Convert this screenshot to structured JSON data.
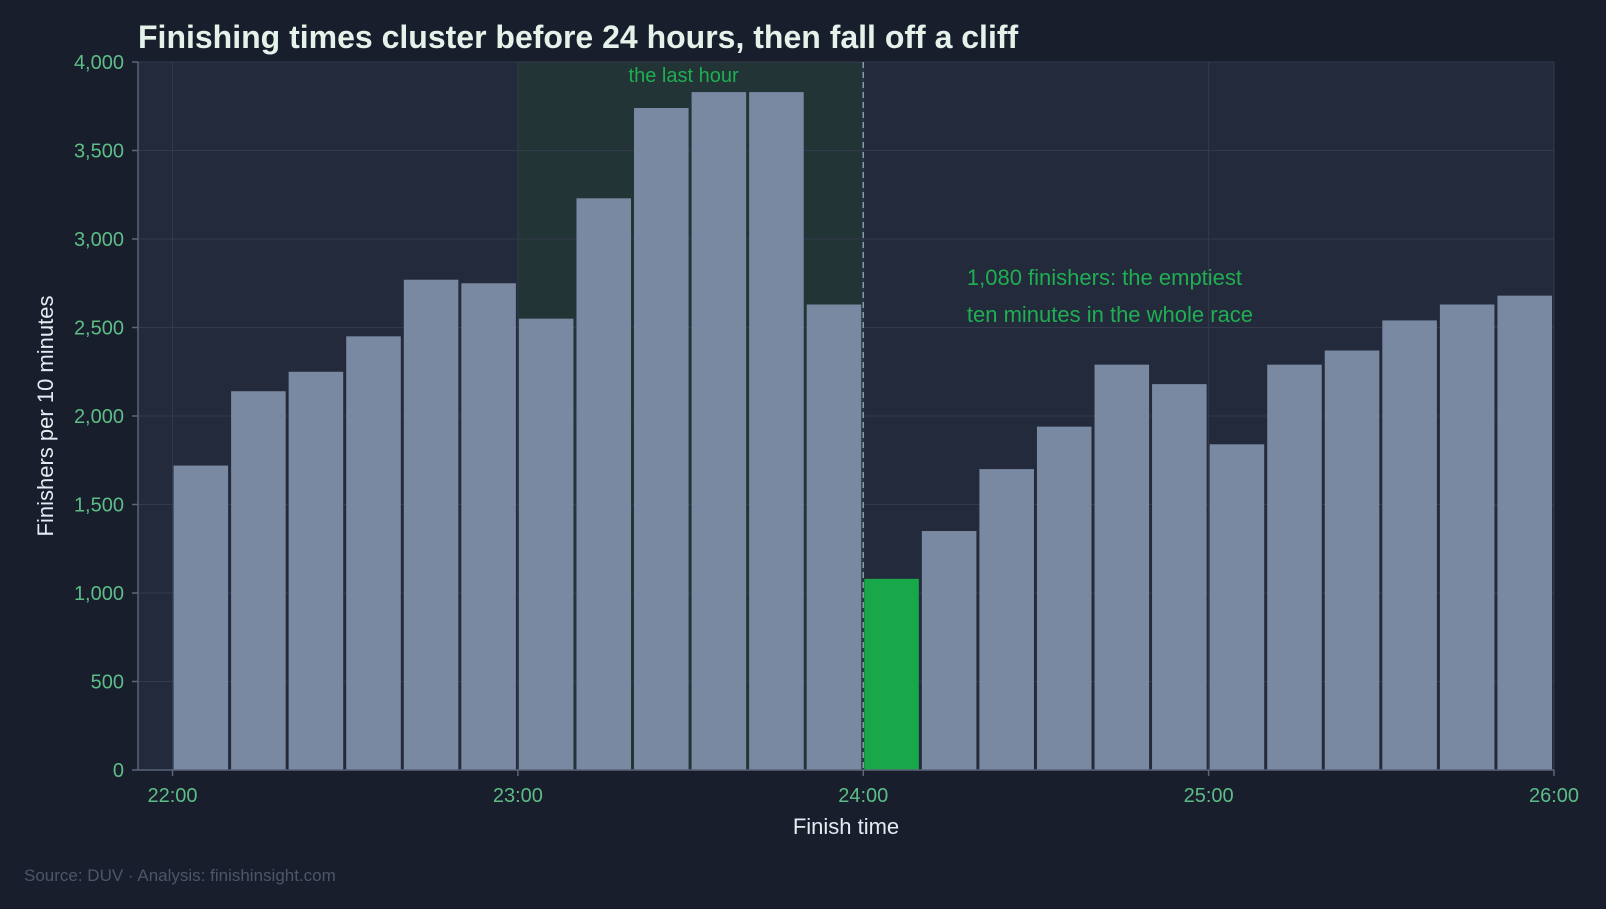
{
  "chart_data": {
    "type": "bar",
    "title": "Finishing times cluster before 24 hours, then fall off a cliff",
    "xlabel": "Finish time",
    "ylabel": "Finishers per 10 minutes",
    "xlim_hours": [
      21.9,
      26.0
    ],
    "ylim": [
      0,
      4000
    ],
    "bin_width_hours": 0.16667,
    "x_ticks": [
      {
        "value": 22,
        "label": "22:00"
      },
      {
        "value": 23,
        "label": "23:00"
      },
      {
        "value": 24,
        "label": "24:00"
      },
      {
        "value": 25,
        "label": "25:00"
      },
      {
        "value": 26,
        "label": "26:00"
      }
    ],
    "y_ticks": [
      {
        "value": 0,
        "label": "0"
      },
      {
        "value": 500,
        "label": "500"
      },
      {
        "value": 1000,
        "label": "1,000"
      },
      {
        "value": 1500,
        "label": "1,500"
      },
      {
        "value": 2000,
        "label": "2,000"
      },
      {
        "value": 2500,
        "label": "2,500"
      },
      {
        "value": 3000,
        "label": "3,000"
      },
      {
        "value": 3500,
        "label": "3,500"
      },
      {
        "value": 4000,
        "label": "4,000"
      }
    ],
    "bins": [
      {
        "start": 22.0,
        "value": 1720
      },
      {
        "start": 22.1667,
        "value": 2140
      },
      {
        "start": 22.3333,
        "value": 2250
      },
      {
        "start": 22.5,
        "value": 2450
      },
      {
        "start": 22.6667,
        "value": 2770
      },
      {
        "start": 22.8333,
        "value": 2750
      },
      {
        "start": 23.0,
        "value": 2550
      },
      {
        "start": 23.1667,
        "value": 3230
      },
      {
        "start": 23.3333,
        "value": 3740
      },
      {
        "start": 23.5,
        "value": 3830
      },
      {
        "start": 23.6667,
        "value": 3830
      },
      {
        "start": 23.8333,
        "value": 2630
      },
      {
        "start": 24.0,
        "value": 1080,
        "highlight": true
      },
      {
        "start": 24.1667,
        "value": 1350
      },
      {
        "start": 24.3333,
        "value": 1700
      },
      {
        "start": 24.5,
        "value": 1940
      },
      {
        "start": 24.6667,
        "value": 2290
      },
      {
        "start": 24.8333,
        "value": 2180
      },
      {
        "start": 25.0,
        "value": 1840
      },
      {
        "start": 25.1667,
        "value": 2290
      },
      {
        "start": 25.3333,
        "value": 2370
      },
      {
        "start": 25.5,
        "value": 2540
      },
      {
        "start": 25.6667,
        "value": 2630
      },
      {
        "start": 25.8333,
        "value": 2680
      }
    ],
    "band": {
      "from": 23,
      "to": 24,
      "label": "the last hour"
    },
    "reference_line": 24,
    "annotation": {
      "lines": [
        "1,080 finishers: the emptiest",
        "ten minutes in the whole race"
      ],
      "anchor": {
        "x": 24.3,
        "y": 2740
      }
    },
    "grid": true,
    "legend": "none",
    "colors": {
      "background": "#181e2c",
      "plot_background": "#232a3b",
      "bar": "#7a89a2",
      "highlight": "#18a84a",
      "band": "#223436",
      "grid": "#323a4c",
      "tick_text": "#5dbd86",
      "annotation": "#1fae52",
      "title": "#e4f2ea"
    }
  },
  "source": {
    "text": "Source: DUV  ·  Analysis: finishinsight.com"
  }
}
